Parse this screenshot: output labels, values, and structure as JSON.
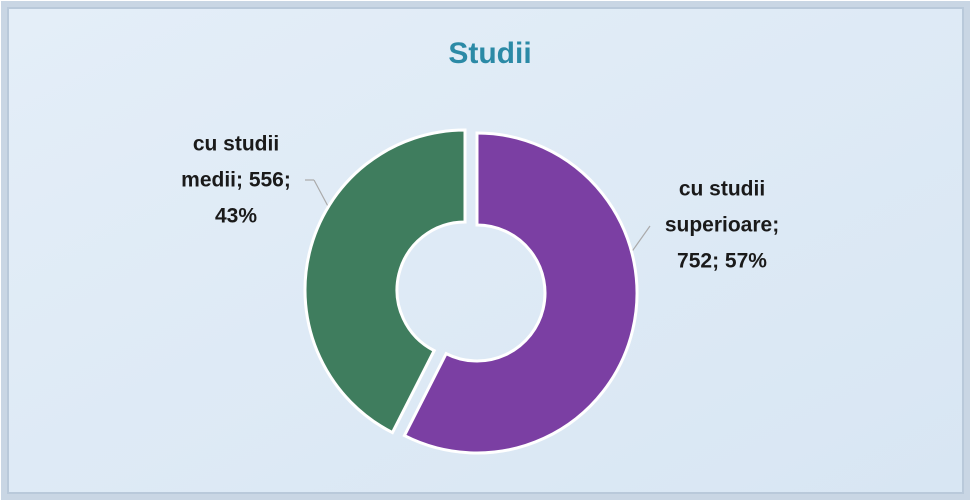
{
  "chart_data": {
    "type": "donut",
    "title": "Studii",
    "values": [
      752,
      556
    ],
    "value_labels": [
      [
        "cu studii",
        "superioare;",
        "752; 57%"
      ],
      [
        "cu studii",
        "medii; 556;",
        "43%"
      ]
    ],
    "colors": [
      "#7b3fa3",
      "#3f7d5e"
    ]
  }
}
